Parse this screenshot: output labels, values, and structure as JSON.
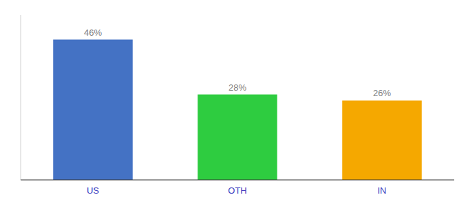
{
  "chart_data": {
    "type": "bar",
    "categories": [
      "US",
      "OTH",
      "IN"
    ],
    "values": [
      46,
      28,
      26
    ],
    "value_labels": [
      "46%",
      "28%",
      "26%"
    ],
    "colors": [
      "#4472c4",
      "#2ecc40",
      "#f5a800"
    ],
    "ylim": [
      0,
      54
    ],
    "data_labels": true,
    "tick_labels": "x",
    "grid": false
  }
}
